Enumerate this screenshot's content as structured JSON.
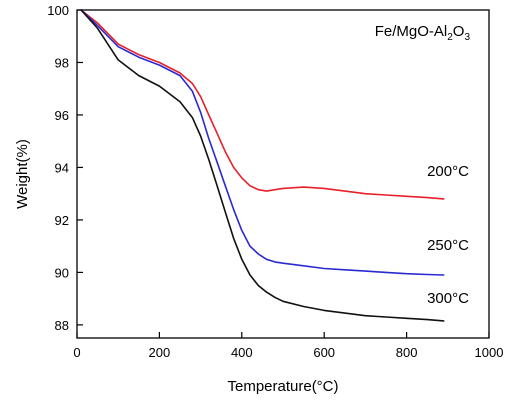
{
  "chart_data": {
    "type": "line",
    "title": "",
    "xlabel": "Temperature(°C)",
    "ylabel": "Weight(%)",
    "xlim": [
      0,
      1000
    ],
    "ylim": [
      87.5,
      100
    ],
    "xticks": [
      0,
      200,
      400,
      600,
      800,
      1000
    ],
    "yticks": [
      88,
      90,
      92,
      94,
      96,
      98,
      100
    ],
    "grid": false,
    "annotation": {
      "prefix": "Fe/MgO-Al",
      "sub1": "2",
      "mid": "O",
      "sub2": "3"
    },
    "series": [
      {
        "name": "200°C",
        "color": "#e8202a",
        "x": [
          10,
          50,
          100,
          150,
          200,
          250,
          280,
          300,
          320,
          340,
          360,
          380,
          400,
          420,
          440,
          460,
          480,
          500,
          550,
          600,
          650,
          700,
          750,
          800,
          850,
          890
        ],
        "y": [
          100,
          99.5,
          98.7,
          98.3,
          98.0,
          97.6,
          97.2,
          96.7,
          96.0,
          95.3,
          94.6,
          94.0,
          93.6,
          93.3,
          93.15,
          93.1,
          93.15,
          93.2,
          93.25,
          93.2,
          93.1,
          93.0,
          92.95,
          92.9,
          92.85,
          92.8
        ]
      },
      {
        "name": "250°C",
        "color": "#2a2ad4",
        "x": [
          10,
          50,
          100,
          150,
          200,
          250,
          280,
          300,
          320,
          340,
          360,
          380,
          400,
          420,
          440,
          460,
          480,
          500,
          550,
          600,
          650,
          700,
          750,
          800,
          850,
          890
        ],
        "y": [
          100,
          99.4,
          98.6,
          98.2,
          97.9,
          97.5,
          96.9,
          96.1,
          95.1,
          94.2,
          93.3,
          92.4,
          91.6,
          91.0,
          90.7,
          90.5,
          90.4,
          90.35,
          90.25,
          90.15,
          90.1,
          90.05,
          90.0,
          89.95,
          89.92,
          89.9
        ]
      },
      {
        "name": "300°C",
        "color": "#111111",
        "x": [
          10,
          50,
          100,
          150,
          200,
          250,
          280,
          300,
          320,
          340,
          360,
          380,
          400,
          420,
          440,
          460,
          480,
          500,
          550,
          600,
          650,
          700,
          750,
          800,
          850,
          890
        ],
        "y": [
          100,
          99.3,
          98.1,
          97.5,
          97.1,
          96.5,
          95.9,
          95.2,
          94.3,
          93.3,
          92.3,
          91.3,
          90.5,
          89.9,
          89.5,
          89.25,
          89.05,
          88.9,
          88.7,
          88.55,
          88.45,
          88.35,
          88.3,
          88.25,
          88.2,
          88.15
        ]
      }
    ]
  }
}
